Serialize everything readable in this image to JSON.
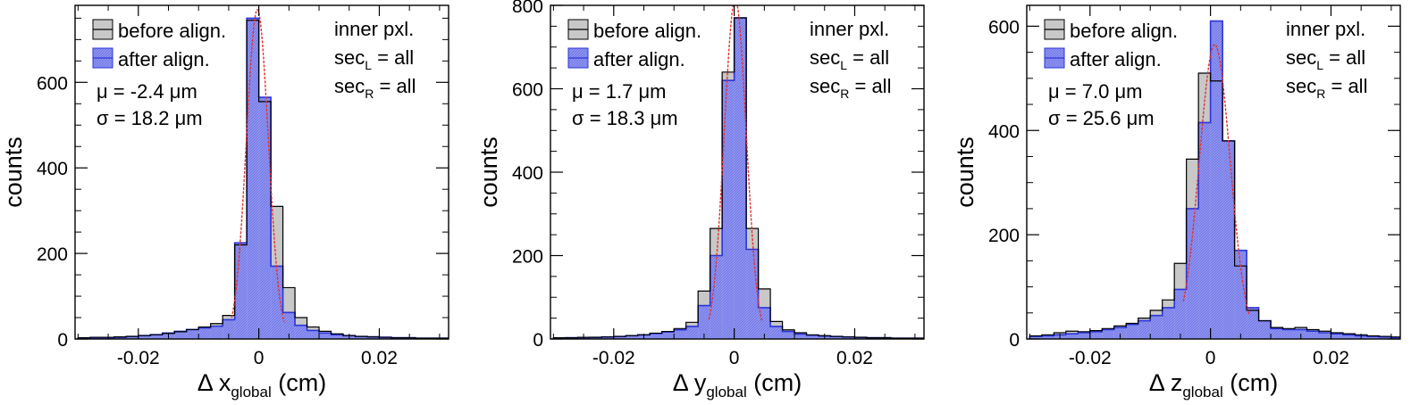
{
  "colors": {
    "before_fill": "#c8c8c8",
    "before_line": "#000000",
    "after_fill": "#8f94ee",
    "after_line": "#2a35d8",
    "fit": "#e8302a",
    "frame": "#000000"
  },
  "legend": {
    "before": "before align.",
    "after": "after align."
  },
  "panels": [
    {
      "info": {
        "line1": "inner pxl.",
        "secL": {
          "base": "sec",
          "sub": "L",
          "rest": " = all"
        },
        "secR": {
          "base": "sec",
          "sub": "R",
          "rest": " = all"
        }
      },
      "stats": {
        "mu": "μ = -2.4 μm",
        "sigma": "σ = 18.2 μm"
      },
      "xlabel": {
        "pre": "Δ x",
        "sub": "global",
        "post": " (cm)"
      },
      "chart_data": {
        "type": "bar",
        "title": "",
        "ylabel": "counts",
        "xlim": [
          -0.0305,
          0.0315
        ],
        "ylim": [
          0,
          780
        ],
        "yticks": [
          0,
          200,
          400,
          600
        ],
        "ytick_labels": [
          "0",
          "200",
          "400",
          "600"
        ],
        "xticks": [
          -0.02,
          0,
          0.02
        ],
        "xtick_labels": [
          "-0.02",
          "0",
          "0.02"
        ],
        "bin_edges": [
          -0.03,
          -0.028,
          -0.026,
          -0.024,
          -0.022,
          -0.02,
          -0.018,
          -0.016,
          -0.014,
          -0.012,
          -0.01,
          -0.008,
          -0.006,
          -0.004,
          -0.002,
          0,
          0.002,
          0.004,
          0.006,
          0.008,
          0.01,
          0.012,
          0.014,
          0.016,
          0.018,
          0.02,
          0.022,
          0.024,
          0.026,
          0.028,
          0.03,
          0.032
        ],
        "series": [
          {
            "name": "before align.",
            "values": [
              3,
              4,
              4,
              5,
              6,
              8,
              10,
              13,
              17,
              22,
              28,
              36,
              55,
              220,
              745,
              555,
              310,
              120,
              50,
              28,
              18,
              12,
              8,
              6,
              5,
              4,
              3,
              3,
              2,
              2,
              2
            ]
          },
          {
            "name": "after align.",
            "values": [
              2,
              3,
              3,
              4,
              6,
              8,
              10,
              14,
              18,
              22,
              26,
              30,
              45,
              225,
              750,
              565,
              170,
              62,
              32,
              20,
              14,
              10,
              8,
              6,
              5,
              4,
              3,
              3,
              2,
              2,
              2
            ]
          }
        ],
        "fit": {
          "mu": -0.00024,
          "sigma": 0.00182,
          "amplitude": 770,
          "range": [
            -0.0045,
            0.0042
          ]
        }
      }
    },
    {
      "info": {
        "line1": "inner pxl.",
        "secL": {
          "base": "sec",
          "sub": "L",
          "rest": " = all"
        },
        "secR": {
          "base": "sec",
          "sub": "R",
          "rest": " = all"
        }
      },
      "stats": {
        "mu": "μ = 1.7 μm",
        "sigma": "σ = 18.3 μm"
      },
      "xlabel": {
        "pre": "Δ y",
        "sub": "global",
        "post": " (cm)"
      },
      "chart_data": {
        "type": "bar",
        "title": "",
        "ylabel": "counts",
        "xlim": [
          -0.0305,
          0.0315
        ],
        "ylim": [
          0,
          800
        ],
        "yticks": [
          0,
          200,
          400,
          600,
          800
        ],
        "ytick_labels": [
          "0",
          "200",
          "400",
          "600",
          "800"
        ],
        "xticks": [
          -0.02,
          0,
          0.02
        ],
        "xtick_labels": [
          "-0.02",
          "0",
          "0.02"
        ],
        "bin_edges": [
          -0.03,
          -0.028,
          -0.026,
          -0.024,
          -0.022,
          -0.02,
          -0.018,
          -0.016,
          -0.014,
          -0.012,
          -0.01,
          -0.008,
          -0.006,
          -0.004,
          -0.002,
          0,
          0.002,
          0.004,
          0.006,
          0.008,
          0.01,
          0.012,
          0.014,
          0.016,
          0.018,
          0.02,
          0.022,
          0.024,
          0.026,
          0.028,
          0.03,
          0.032
        ],
        "series": [
          {
            "name": "before align.",
            "values": [
              3,
              3,
              4,
              4,
              5,
              6,
              8,
              10,
              14,
              18,
              25,
              40,
              115,
              265,
              640,
              770,
              265,
              120,
              42,
              22,
              15,
              10,
              8,
              6,
              5,
              4,
              3,
              3,
              2,
              2,
              2
            ]
          },
          {
            "name": "after align.",
            "values": [
              2,
              3,
              3,
              4,
              5,
              6,
              8,
              10,
              13,
              17,
              22,
              30,
              80,
              200,
              620,
              770,
              215,
              75,
              30,
              18,
              12,
              9,
              7,
              6,
              5,
              4,
              3,
              3,
              2,
              2,
              2
            ]
          }
        ],
        "fit": {
          "mu": 0.00017,
          "sigma": 0.00183,
          "amplitude": 815,
          "range": [
            -0.0042,
            0.0046
          ]
        }
      }
    },
    {
      "info": {
        "line1": "inner pxl.",
        "secL": {
          "base": "sec",
          "sub": "L",
          "rest": " = all"
        },
        "secR": {
          "base": "sec",
          "sub": "R",
          "rest": " = all"
        }
      },
      "stats": {
        "mu": "μ = 7.0 μm",
        "sigma": "σ = 25.6 μm"
      },
      "xlabel": {
        "pre": "Δ z",
        "sub": "global",
        "post": " (cm)"
      },
      "chart_data": {
        "type": "bar",
        "title": "",
        "ylabel": "counts",
        "xlim": [
          -0.0305,
          0.0315
        ],
        "ylim": [
          0,
          640
        ],
        "yticks": [
          0,
          200,
          400,
          600
        ],
        "ytick_labels": [
          "0",
          "200",
          "400",
          "600"
        ],
        "xticks": [
          -0.02,
          0,
          0.02
        ],
        "xtick_labels": [
          "-0.02",
          "0",
          "0.02"
        ],
        "bin_edges": [
          -0.03,
          -0.028,
          -0.026,
          -0.024,
          -0.022,
          -0.02,
          -0.018,
          -0.016,
          -0.014,
          -0.012,
          -0.01,
          -0.008,
          -0.006,
          -0.004,
          -0.002,
          0,
          0.002,
          0.004,
          0.006,
          0.008,
          0.01,
          0.012,
          0.014,
          0.016,
          0.018,
          0.02,
          0.022,
          0.024,
          0.026,
          0.028,
          0.03,
          0.032
        ],
        "series": [
          {
            "name": "before align.",
            "values": [
              6,
              8,
              12,
              15,
              14,
              16,
              20,
              25,
              30,
              40,
              55,
              75,
              145,
              345,
              510,
              495,
              380,
              140,
              55,
              35,
              22,
              20,
              22,
              18,
              15,
              12,
              10,
              8,
              6,
              5,
              4
            ]
          },
          {
            "name": "after align.",
            "values": [
              5,
              6,
              8,
              10,
              12,
              14,
              18,
              22,
              28,
              35,
              45,
              60,
              95,
              250,
              415,
              610,
              380,
              170,
              60,
              35,
              20,
              18,
              18,
              15,
              12,
              10,
              8,
              6,
              5,
              4,
              3
            ]
          }
        ],
        "fit": {
          "mu": 0.0007,
          "sigma": 0.00256,
          "amplitude": 565,
          "range": [
            -0.0045,
            0.0064
          ]
        }
      }
    }
  ]
}
